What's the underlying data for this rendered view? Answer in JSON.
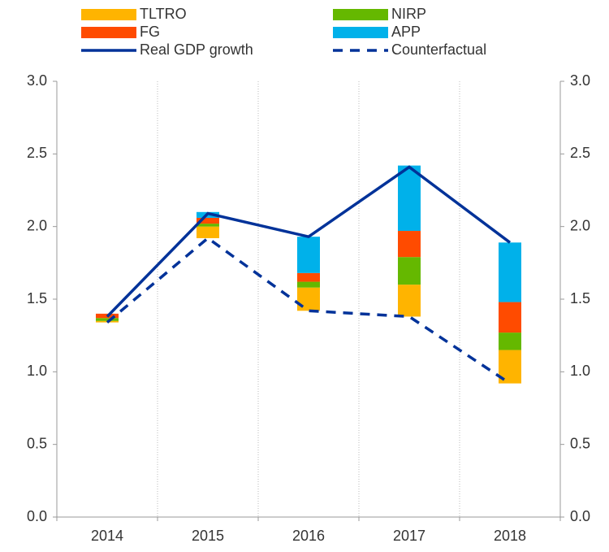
{
  "chart_data": {
    "type": "bar",
    "categories": [
      "2014",
      "2015",
      "2016",
      "2017",
      "2018"
    ],
    "series": [
      {
        "name": "TLTRO",
        "color": "#ffb400",
        "type": "bar",
        "values": [
          0.01,
          0.08,
          0.16,
          0.22,
          0.23
        ]
      },
      {
        "name": "FG",
        "color": "#ff4b00",
        "type": "bar",
        "values": [
          0.03,
          0.04,
          0.06,
          0.18,
          0.21
        ]
      },
      {
        "name": "Real GDP growth",
        "color": "#003299",
        "type": "line",
        "dashed": false,
        "values": [
          1.38,
          2.09,
          1.93,
          2.41,
          1.89
        ]
      },
      {
        "name": "NIRP",
        "color": "#65b800",
        "type": "bar",
        "values": [
          0.02,
          0.02,
          0.04,
          0.19,
          0.12
        ]
      },
      {
        "name": "APP",
        "color": "#00b1ea",
        "type": "bar",
        "values": [
          0,
          0.04,
          0.25,
          0.45,
          0.41
        ]
      },
      {
        "name": "Counterfactual",
        "color": "#003299",
        "type": "line",
        "dashed": true,
        "values": [
          1.34,
          1.92,
          1.42,
          1.38,
          0.92
        ]
      }
    ],
    "stack_order": [
      0,
      3,
      1,
      4
    ],
    "bar_base_series": 5,
    "ylim": [
      0,
      3
    ],
    "yticks": [
      {
        "value": 0,
        "label": "0.0"
      },
      0.5,
      {
        "value": 1,
        "label": "1.0"
      },
      1.5,
      {
        "value": 2,
        "label": "2.0"
      },
      2.5,
      {
        "value": 3,
        "label": "3.0"
      }
    ],
    "y2lim": [
      0,
      3
    ],
    "y2ticks": [
      {
        "value": 0,
        "label": "0.0"
      },
      0.5,
      {
        "value": 1,
        "label": "1.0"
      },
      1.5,
      {
        "value": 2,
        "label": "2.0"
      },
      2.5,
      {
        "value": 3,
        "label": "3.0"
      }
    ],
    "grid": true
  }
}
